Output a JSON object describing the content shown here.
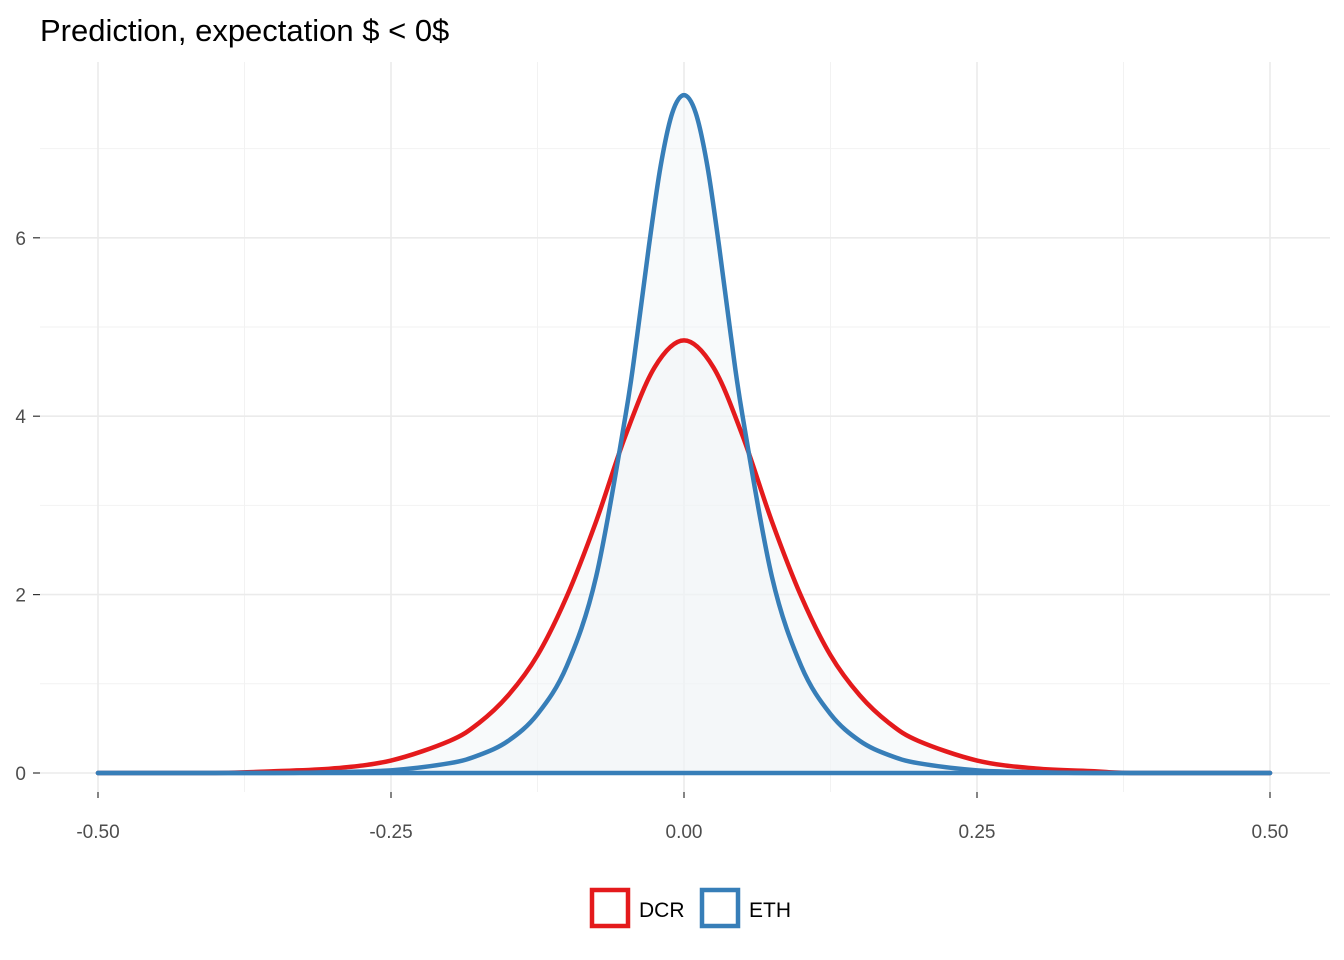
{
  "chart_data": {
    "type": "area",
    "title": "Prediction, expectation $ < 0$",
    "xlabel": "",
    "ylabel": "",
    "xlim": [
      -0.5,
      0.5
    ],
    "ylim": [
      0,
      7.6
    ],
    "x_ticks": [
      "-0.50",
      "-0.25",
      "0.00",
      "0.25",
      "0.50"
    ],
    "x_tick_values": [
      -0.5,
      -0.25,
      0.0,
      0.25,
      0.5
    ],
    "y_ticks": [
      "0",
      "2",
      "4",
      "6"
    ],
    "y_tick_values": [
      0,
      2,
      4,
      6
    ],
    "grid": true,
    "legend_position": "bottom",
    "series": [
      {
        "name": "DCR",
        "color": "#e41a1c",
        "x": [
          -0.5,
          -0.4,
          -0.35,
          -0.3,
          -0.25,
          -0.2,
          -0.175,
          -0.15,
          -0.125,
          -0.1,
          -0.075,
          -0.05,
          -0.025,
          0.0,
          0.025,
          0.05,
          0.075,
          0.1,
          0.125,
          0.15,
          0.175,
          0.2,
          0.25,
          0.3,
          0.35,
          0.385,
          0.5
        ],
        "y": [
          0,
          0.0,
          0.02,
          0.05,
          0.14,
          0.36,
          0.56,
          0.87,
          1.32,
          1.98,
          2.82,
          3.78,
          4.55,
          4.85,
          4.55,
          3.78,
          2.82,
          1.98,
          1.32,
          0.87,
          0.56,
          0.36,
          0.14,
          0.05,
          0.02,
          0.0,
          0
        ]
      },
      {
        "name": "ETH",
        "color": "#377eb8",
        "x": [
          -0.5,
          -0.35,
          -0.3,
          -0.25,
          -0.2,
          -0.175,
          -0.15,
          -0.125,
          -0.1,
          -0.075,
          -0.05,
          -0.04,
          -0.03,
          -0.02,
          -0.01,
          0.0,
          0.01,
          0.02,
          0.03,
          0.04,
          0.05,
          0.075,
          0.1,
          0.125,
          0.15,
          0.175,
          0.2,
          0.25,
          0.3,
          0.35,
          0.5
        ],
        "y": [
          0,
          0.0,
          0.01,
          0.03,
          0.11,
          0.2,
          0.36,
          0.66,
          1.2,
          2.2,
          4.0,
          4.9,
          5.9,
          6.8,
          7.4,
          7.6,
          7.4,
          6.8,
          5.9,
          4.9,
          4.0,
          2.2,
          1.2,
          0.66,
          0.36,
          0.2,
          0.11,
          0.03,
          0.01,
          0.0,
          0
        ]
      }
    ]
  }
}
